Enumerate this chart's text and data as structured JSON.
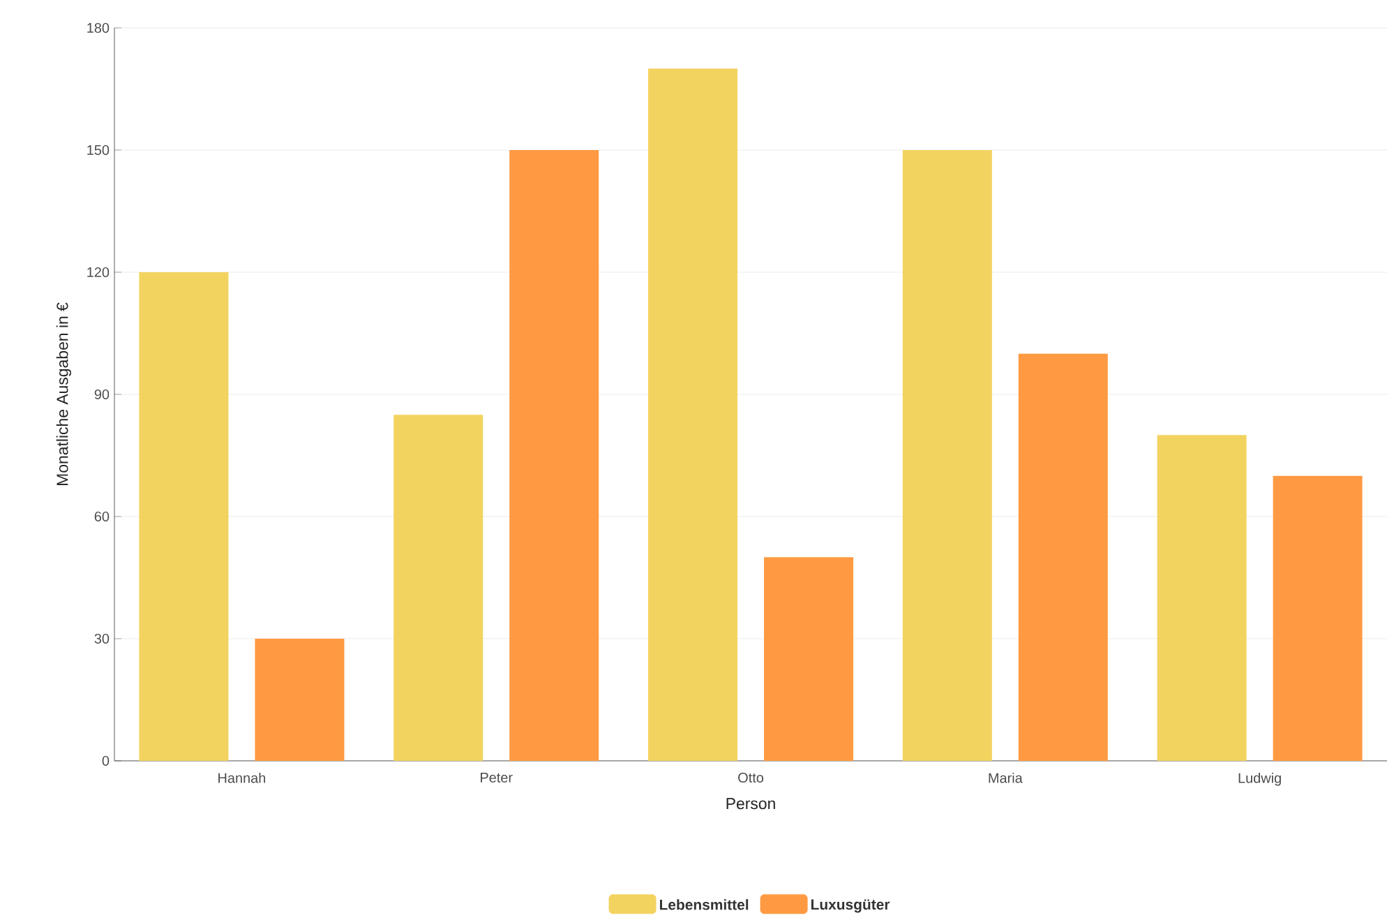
{
  "chart_data": {
    "type": "bar",
    "xlabel": "Person",
    "ylabel": "Monatliche Ausgaben in €",
    "categories": [
      "Hannah",
      "Peter",
      "Otto",
      "Maria",
      "Ludwig"
    ],
    "series": [
      {
        "name": "Lebensmittel",
        "color": "#f3d35f",
        "values": [
          120,
          85,
          170,
          150,
          80
        ]
      },
      {
        "name": "Luxusgüter",
        "color": "#ff9a42",
        "values": [
          30,
          150,
          50,
          100,
          70
        ]
      }
    ],
    "ylim": [
      0,
      180
    ],
    "yticks": [
      0,
      30,
      60,
      90,
      120,
      150,
      180
    ],
    "grid": "y",
    "legend": "bottom"
  }
}
